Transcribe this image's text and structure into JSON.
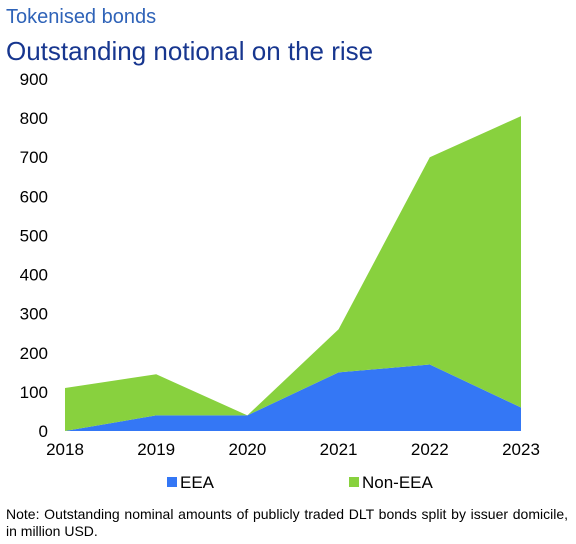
{
  "chart_data": {
    "type": "area",
    "stacked": true,
    "subtitle": "Tokenised bonds",
    "title": "Outstanding notional on the rise",
    "x": [
      "2018",
      "2019",
      "2020",
      "2021",
      "2022",
      "2023"
    ],
    "series": [
      {
        "name": "EEA",
        "color": "#3477f5",
        "values": [
          0,
          40,
          40,
          150,
          170,
          60
        ]
      },
      {
        "name": "Non-EEA",
        "color": "#88d13e",
        "values": [
          110,
          105,
          0,
          110,
          530,
          745
        ]
      }
    ],
    "totals": [
      110,
      145,
      40,
      260,
      700,
      805
    ],
    "ylim": [
      0,
      900
    ],
    "yticks": [
      0,
      100,
      200,
      300,
      400,
      500,
      600,
      700,
      800,
      900
    ],
    "grid": false,
    "legend_position": "bottom",
    "note": "Note: Outstanding nominal amounts of publicly traded DLT bonds split by issuer domicile, in million USD."
  }
}
